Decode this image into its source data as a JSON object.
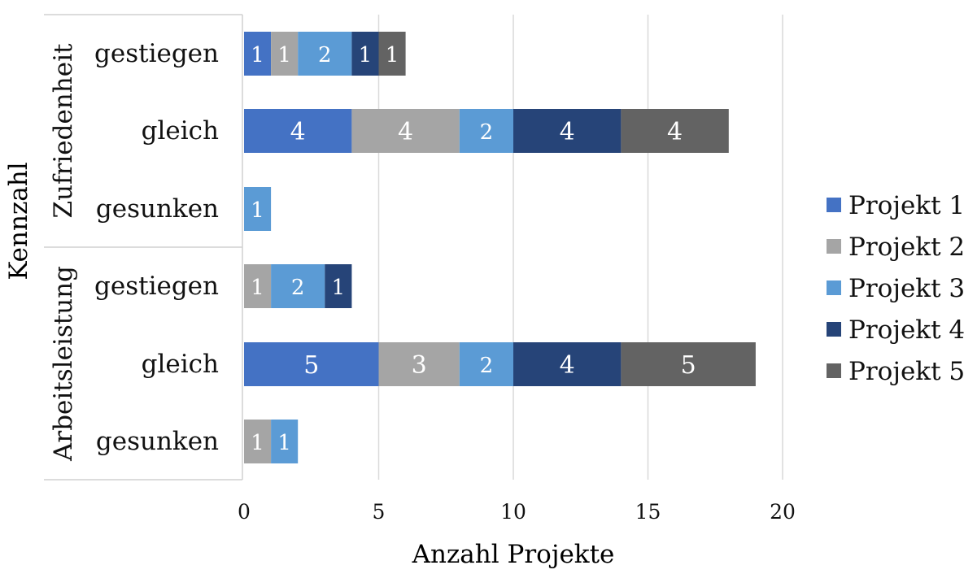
{
  "chart_data": {
    "type": "bar",
    "orientation": "horizontal",
    "stacked": true,
    "xlabel": "Anzahl Projekte",
    "ylabel": "Kennzahl",
    "xlim": [
      0,
      20
    ],
    "x_ticks": [
      "0",
      "5",
      "10",
      "15",
      "20"
    ],
    "grid": "vertical",
    "legend_position": "right",
    "groups": [
      {
        "label": "Zufriedenheit",
        "categories": [
          "gestiegen",
          "gleich",
          "gesunken"
        ]
      },
      {
        "label": "Arbeitsleistung",
        "categories": [
          "gestiegen",
          "gleich",
          "gesunken"
        ]
      }
    ],
    "categories": [
      "Zufriedenheit – gestiegen",
      "Zufriedenheit – gleich",
      "Zufriedenheit – gesunken",
      "Arbeitsleistung – gestiegen",
      "Arbeitsleistung – gleich",
      "Arbeitsleistung – gesunken"
    ],
    "series": [
      {
        "name": "Projekt 1",
        "color": "#4472c4",
        "values": [
          1,
          4,
          0,
          0,
          5,
          0
        ]
      },
      {
        "name": "Projekt 2",
        "color": "#a5a5a5",
        "values": [
          1,
          4,
          0,
          1,
          3,
          1
        ]
      },
      {
        "name": "Projekt 3",
        "color": "#5b9bd5",
        "values": [
          2,
          2,
          1,
          2,
          2,
          1
        ]
      },
      {
        "name": "Projekt 4",
        "color": "#264478",
        "values": [
          1,
          4,
          0,
          1,
          4,
          0
        ]
      },
      {
        "name": "Projekt 5",
        "color": "#636363",
        "values": [
          1,
          4,
          0,
          0,
          5,
          0
        ]
      }
    ]
  }
}
